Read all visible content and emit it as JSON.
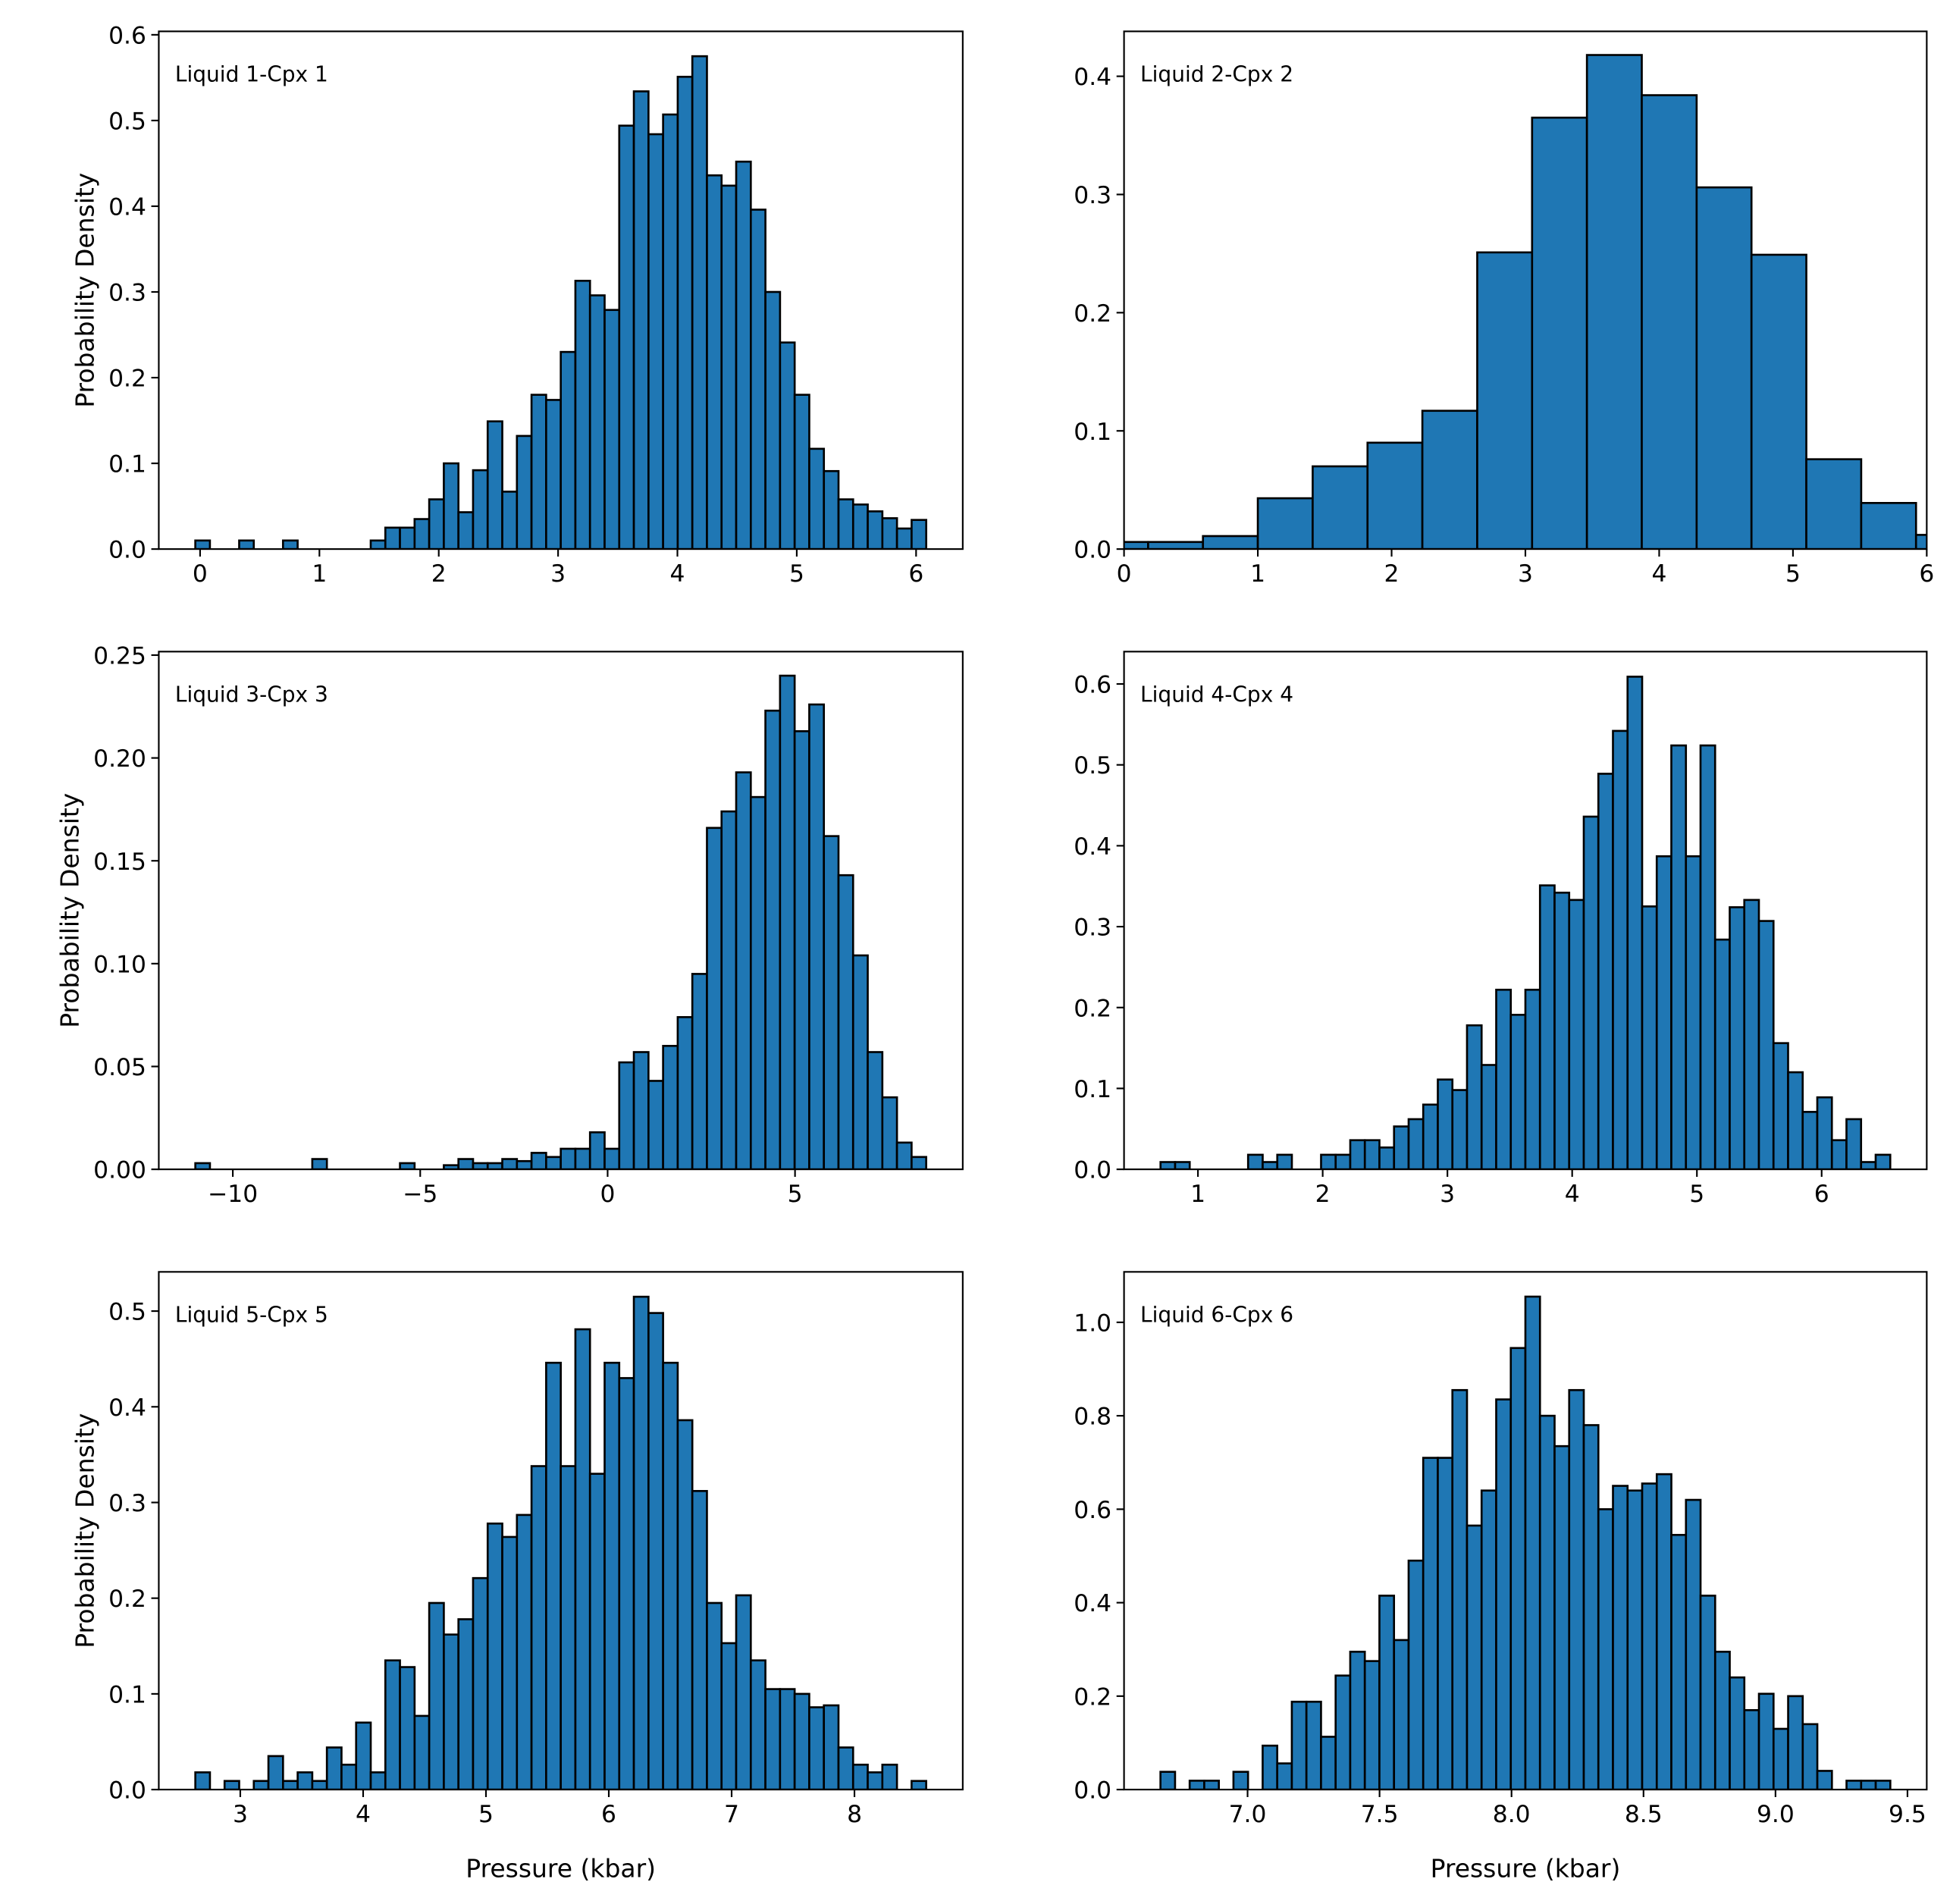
{
  "chart_data": [
    {
      "type": "histogram",
      "annotation": "Liquid 1-Cpx 1",
      "ylabel": "Probability Density",
      "color": "#1f77b4",
      "edgecolor": "#000000",
      "bins": [
        -0.04,
        0.0825,
        0.205,
        0.3275,
        0.45,
        0.5725,
        0.695,
        0.8175,
        0.94,
        1.0625,
        1.185,
        1.3075,
        1.43,
        1.5525,
        1.675,
        1.7975,
        1.92,
        2.0425,
        2.165,
        2.2875,
        2.41,
        2.5325,
        2.655,
        2.7775,
        2.9,
        3.0225,
        3.145,
        3.2675,
        3.39,
        3.5125,
        3.635,
        3.7575,
        3.88,
        4.0025,
        4.125,
        4.2475,
        4.37,
        4.4925,
        4.615,
        4.7375,
        4.86,
        4.9825,
        5.105,
        5.2275,
        5.35,
        5.4725,
        5.595,
        5.7175,
        5.84,
        5.9625,
        6.085
      ],
      "values": [
        0.01,
        0,
        0,
        0.01,
        0,
        0,
        0.01,
        0,
        0,
        0,
        0,
        0,
        0.01,
        0.025,
        0.025,
        0.035,
        0.058,
        0.1,
        0.043,
        0.092,
        0.149,
        0.067,
        0.132,
        0.18,
        0.174,
        0.23,
        0.313,
        0.296,
        0.279,
        0.494,
        0.534,
        0.484,
        0.507,
        0.551,
        0.575,
        0.436,
        0.424,
        0.452,
        0.396,
        0.3,
        0.241,
        0.18,
        0.117,
        0.091,
        0.058,
        0.052,
        0.044,
        0.036,
        0.024,
        0.034
      ],
      "xlim": [
        -0.346,
        6.391
      ],
      "ylim": [
        0,
        0.604
      ],
      "xticks": [
        0,
        1,
        2,
        3,
        4,
        5,
        6
      ],
      "yticks": [
        {
          "value": 0,
          "label": "0.0"
        },
        0.1,
        0.2,
        0.3,
        0.4,
        0.5,
        0.6
      ]
    },
    {
      "type": "histogram",
      "annotation": "Liquid 2-Cpx 2",
      "color": "#1f77b4",
      "edgecolor": "#000000",
      "bins": [
        -0.23,
        0.18,
        0.59,
        1.0,
        1.41,
        1.82,
        2.23,
        2.64,
        3.05,
        3.46,
        3.87,
        4.28,
        4.69,
        5.1,
        5.51,
        5.92,
        6.33
      ],
      "values": [
        0.006,
        0.006,
        0.011,
        0.043,
        0.07,
        0.09,
        0.117,
        0.251,
        0.365,
        0.418,
        0.384,
        0.306,
        0.249,
        0.076,
        0.039,
        0.012
      ],
      "xlim": [
        0,
        6
      ],
      "ylim": [
        0,
        0.438
      ],
      "xticks": [
        0,
        1,
        2,
        3,
        4,
        5,
        6
      ],
      "yticks": [
        {
          "value": 0,
          "label": "0.0"
        },
        0.1,
        0.2,
        0.3,
        0.4
      ]
    },
    {
      "type": "histogram",
      "annotation": "Liquid 3-Cpx 3",
      "ylabel": "Probability Density",
      "color": "#1f77b4",
      "edgecolor": "#000000",
      "bins": [
        -11,
        -10.61,
        -10.22,
        -9.83,
        -9.44,
        -9.05,
        -8.66,
        -8.27,
        -7.88,
        -7.49,
        -7.1,
        -6.71,
        -6.32,
        -5.93,
        -5.54,
        -5.15,
        -4.76,
        -4.37,
        -3.98,
        -3.59,
        -3.2,
        -2.81,
        -2.42,
        -2.03,
        -1.64,
        -1.25,
        -0.86,
        -0.47,
        -0.08,
        0.31,
        0.7,
        1.09,
        1.48,
        1.87,
        2.26,
        2.65,
        3.04,
        3.43,
        3.82,
        4.21,
        4.6,
        4.99,
        5.38,
        5.77,
        6.16,
        6.55,
        6.94,
        7.33,
        7.72,
        8.11,
        8.5
      ],
      "values": [
        0.003,
        0,
        0,
        0,
        0,
        0,
        0,
        0,
        0.005,
        0,
        0,
        0,
        0,
        0,
        0.003,
        0,
        0,
        0.002,
        0.005,
        0.003,
        0.003,
        0.005,
        0.004,
        0.008,
        0.006,
        0.01,
        0.01,
        0.018,
        0.01,
        0.052,
        0.057,
        0.043,
        0.06,
        0.074,
        0.095,
        0.166,
        0.174,
        0.193,
        0.181,
        0.223,
        0.24,
        0.213,
        0.226,
        0.162,
        0.143,
        0.104,
        0.057,
        0.035,
        0.013,
        0.006
      ],
      "xlim": [
        -11.975,
        9.475
      ],
      "ylim": [
        0,
        0.2517
      ],
      "xticks": [
        {
          "value": -10,
          "label": "−10"
        },
        {
          "value": -5,
          "label": "−5"
        },
        0,
        5
      ],
      "yticks": [
        {
          "value": 0,
          "label": "0.00"
        },
        0.05,
        {
          "value": 0.1,
          "label": "0.10"
        },
        0.15,
        {
          "value": 0.2,
          "label": "0.20"
        },
        0.25
      ]
    },
    {
      "type": "histogram",
      "annotation": "Liquid 4-Cpx 4",
      "color": "#1f77b4",
      "edgecolor": "#000000",
      "bins": [
        0.7,
        0.817,
        0.934,
        1.051,
        1.168,
        1.285,
        1.402,
        1.519,
        1.636,
        1.753,
        1.87,
        1.987,
        2.104,
        2.221,
        2.338,
        2.455,
        2.572,
        2.689,
        2.806,
        2.923,
        3.04,
        3.157,
        3.274,
        3.391,
        3.508,
        3.625,
        3.742,
        3.859,
        3.976,
        4.093,
        4.21,
        4.327,
        4.444,
        4.561,
        4.678,
        4.795,
        4.912,
        5.029,
        5.146,
        5.263,
        5.38,
        5.497,
        5.614,
        5.731,
        5.848,
        5.965,
        6.082,
        6.199,
        6.316,
        6.433,
        6.55
      ],
      "values": [
        0.009,
        0.009,
        0,
        0,
        0,
        0,
        0.018,
        0.009,
        0.018,
        0,
        0,
        0.018,
        0.018,
        0.036,
        0.036,
        0.027,
        0.053,
        0.062,
        0.08,
        0.111,
        0.098,
        0.178,
        0.129,
        0.222,
        0.191,
        0.222,
        0.351,
        0.342,
        0.333,
        0.436,
        0.489,
        0.542,
        0.609,
        0.325,
        0.387,
        0.524,
        0.387,
        0.524,
        0.284,
        0.324,
        0.333,
        0.307,
        0.156,
        0.12,
        0.071,
        0.089,
        0.036,
        0.062,
        0.009,
        0.018
      ],
      "xlim": [
        0.4075,
        6.8425
      ],
      "ylim": [
        0,
        0.64
      ],
      "xticks": [
        1,
        2,
        3,
        4,
        5,
        6
      ],
      "yticks": [
        {
          "value": 0,
          "label": "0.0"
        },
        0.1,
        0.2,
        0.3,
        0.4,
        0.5,
        0.6
      ]
    },
    {
      "type": "histogram",
      "annotation": "Liquid 5-Cpx 5",
      "ylabel": "Probability Density",
      "xlabel": "Pressure (kbar)",
      "color": "#1f77b4",
      "edgecolor": "#000000",
      "bins": [
        2.634,
        2.753,
        2.872,
        2.991,
        3.11,
        3.229,
        3.348,
        3.467,
        3.586,
        3.705,
        3.824,
        3.943,
        4.062,
        4.181,
        4.3,
        4.419,
        4.538,
        4.657,
        4.776,
        4.895,
        5.014,
        5.133,
        5.252,
        5.371,
        5.49,
        5.609,
        5.728,
        5.847,
        5.966,
        6.085,
        6.204,
        6.323,
        6.442,
        6.561,
        6.68,
        6.799,
        6.918,
        7.037,
        7.156,
        7.275,
        7.394,
        7.513,
        7.632,
        7.751,
        7.87,
        7.989,
        8.108,
        8.227,
        8.346,
        8.465,
        8.584
      ],
      "values": [
        0.018,
        0,
        0.009,
        0,
        0.009,
        0.035,
        0.009,
        0.018,
        0.009,
        0.044,
        0.026,
        0.07,
        0.018,
        0.135,
        0.128,
        0.077,
        0.195,
        0.162,
        0.178,
        0.221,
        0.278,
        0.264,
        0.287,
        0.338,
        0.446,
        0.338,
        0.481,
        0.33,
        0.446,
        0.43,
        0.515,
        0.498,
        0.446,
        0.386,
        0.312,
        0.195,
        0.153,
        0.203,
        0.135,
        0.105,
        0.105,
        0.1,
        0.086,
        0.088,
        0.044,
        0.026,
        0.018,
        0.026,
        0,
        0.009
      ],
      "xlim": [
        2.3365,
        8.8815
      ],
      "ylim": [
        0,
        0.541
      ],
      "xticks": [
        3,
        4,
        5,
        6,
        7,
        8
      ],
      "yticks": [
        {
          "value": 0,
          "label": "0.0"
        },
        0.1,
        0.2,
        0.3,
        0.4,
        0.5
      ]
    },
    {
      "type": "histogram",
      "annotation": "Liquid 6-Cpx 6",
      "xlabel": "Pressure (kbar)",
      "color": "#1f77b4",
      "edgecolor": "#000000",
      "bins": [
        6.67,
        6.7253,
        6.7806,
        6.8359,
        6.8912,
        6.9465,
        7.0018,
        7.0571,
        7.1124,
        7.1677,
        7.223,
        7.2783,
        7.3336,
        7.3889,
        7.4442,
        7.4995,
        7.5548,
        7.6101,
        7.6654,
        7.7207,
        7.776,
        7.8313,
        7.8866,
        7.9419,
        7.9972,
        8.0525,
        8.1078,
        8.1631,
        8.2184,
        8.2737,
        8.329,
        8.3843,
        8.4396,
        8.4949,
        8.5502,
        8.6055,
        8.6608,
        8.7161,
        8.7714,
        8.8267,
        8.882,
        8.9373,
        8.9926,
        9.0479,
        9.1032,
        9.1585,
        9.2138,
        9.2691,
        9.3244,
        9.3797,
        9.435
      ],
      "values": [
        0.038,
        0,
        0.019,
        0.019,
        0,
        0.038,
        0,
        0.094,
        0.056,
        0.188,
        0.188,
        0.113,
        0.244,
        0.295,
        0.275,
        0.415,
        0.32,
        0.49,
        0.71,
        0.71,
        0.855,
        0.565,
        0.64,
        0.835,
        0.945,
        1.055,
        0.8,
        0.735,
        0.855,
        0.78,
        0.6,
        0.65,
        0.64,
        0.655,
        0.675,
        0.545,
        0.62,
        0.415,
        0.295,
        0.24,
        0.17,
        0.205,
        0.13,
        0.2,
        0.14,
        0.04,
        0,
        0.019,
        0.019,
        0.019
      ],
      "xlim": [
        6.532,
        9.573
      ],
      "ylim": [
        0,
        1.108
      ],
      "xticks": [
        {
          "value": 7,
          "label": "7.0"
        },
        7.5,
        {
          "value": 8,
          "label": "8.0"
        },
        8.5,
        {
          "value": 9,
          "label": "9.0"
        },
        9.5
      ],
      "yticks": [
        {
          "value": 0,
          "label": "0.0"
        },
        0.2,
        0.4,
        0.6,
        0.8,
        {
          "value": 1,
          "label": "1.0"
        }
      ]
    }
  ]
}
